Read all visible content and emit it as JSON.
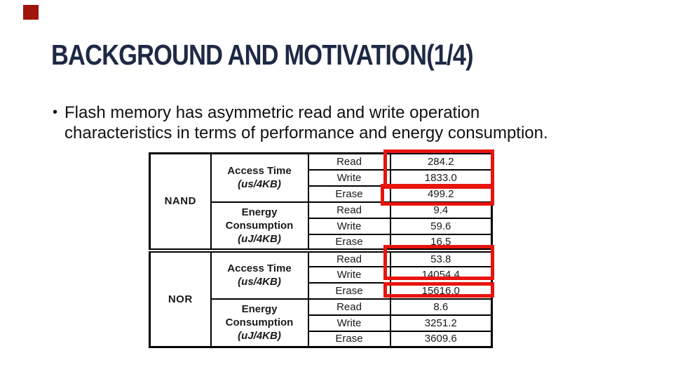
{
  "slide": {
    "title": "BACKGROUND AND MOTIVATION(1/4)",
    "bullet": {
      "marker": "•",
      "lines": [
        "Flash memory has asymmetric read and write operation",
        "characteristics in terms of performance and energy consumption."
      ]
    }
  },
  "colors": {
    "title_text": "#1e2945",
    "body_text": "#111111",
    "table_border": "#000000",
    "highlight_red": "#e8140e",
    "corner_square": "#a0150b"
  },
  "table": {
    "groups": [
      {
        "name": "NAND",
        "metrics": [
          {
            "title": "Access Time",
            "unit": "(us/4KB)",
            "rows": [
              {
                "op": "Read",
                "value": "284.2"
              },
              {
                "op": "Write",
                "value": "1833.0"
              },
              {
                "op": "Erase",
                "value": "499.2"
              }
            ]
          },
          {
            "title": "Energy Consumption",
            "unit": "(uJ/4KB)",
            "rows": [
              {
                "op": "Read",
                "value": "9.4"
              },
              {
                "op": "Write",
                "value": "59.6"
              },
              {
                "op": "Erase",
                "value": "16.5"
              }
            ]
          }
        ]
      },
      {
        "name": "NOR",
        "metrics": [
          {
            "title": "Access Time",
            "unit": "(us/4KB)",
            "rows": [
              {
                "op": "Read",
                "value": "53.8"
              },
              {
                "op": "Write",
                "value": "14054.4"
              },
              {
                "op": "Erase",
                "value": "15616.0"
              }
            ]
          },
          {
            "title": "Energy Consumption",
            "unit": "(uJ/4KB)",
            "rows": [
              {
                "op": "Read",
                "value": "8.6"
              },
              {
                "op": "Write",
                "value": "3251.2"
              },
              {
                "op": "Erase",
                "value": "3609.6"
              }
            ]
          }
        ]
      }
    ]
  }
}
